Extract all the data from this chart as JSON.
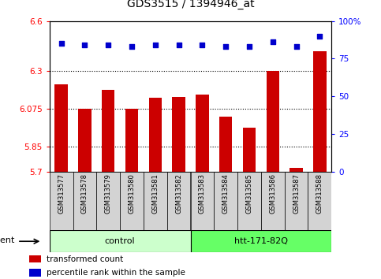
{
  "title": "GDS3515 / 1394946_at",
  "samples": [
    "GSM313577",
    "GSM313578",
    "GSM313579",
    "GSM313580",
    "GSM313581",
    "GSM313582",
    "GSM313583",
    "GSM313584",
    "GSM313585",
    "GSM313586",
    "GSM313587",
    "GSM313588"
  ],
  "bar_values": [
    6.22,
    6.075,
    6.19,
    6.075,
    6.14,
    6.145,
    6.16,
    6.03,
    5.96,
    6.3,
    5.72,
    6.42
  ],
  "percentile_values": [
    85,
    84,
    84,
    83,
    84,
    84,
    84,
    83,
    83,
    86,
    83,
    90
  ],
  "bar_color": "#cc0000",
  "percentile_color": "#0000cc",
  "ylim_left": [
    5.7,
    6.6
  ],
  "ylim_right": [
    0,
    100
  ],
  "yticks_left": [
    5.7,
    5.85,
    6.075,
    6.3,
    6.6
  ],
  "ytick_labels_left": [
    "5.7",
    "5.85",
    "6.075",
    "6.3",
    "6.6"
  ],
  "yticks_right": [
    0,
    25,
    50,
    75,
    100
  ],
  "ytick_labels_right": [
    "0",
    "25",
    "50",
    "75",
    "100%"
  ],
  "hlines": [
    6.075,
    5.85,
    6.3
  ],
  "groups": [
    {
      "label": "control",
      "start": 0,
      "end": 5,
      "color": "#ccffcc"
    },
    {
      "label": "htt-171-82Q",
      "start": 6,
      "end": 11,
      "color": "#66ff66"
    }
  ],
  "agent_label": "agent",
  "legend_items": [
    {
      "color": "#cc0000",
      "label": "transformed count"
    },
    {
      "color": "#0000cc",
      "label": "percentile rank within the sample"
    }
  ],
  "bar_width": 0.55,
  "background_color": "#ffffff",
  "sample_box_color": "#d3d3d3",
  "figsize": [
    4.83,
    3.54
  ],
  "dpi": 100
}
